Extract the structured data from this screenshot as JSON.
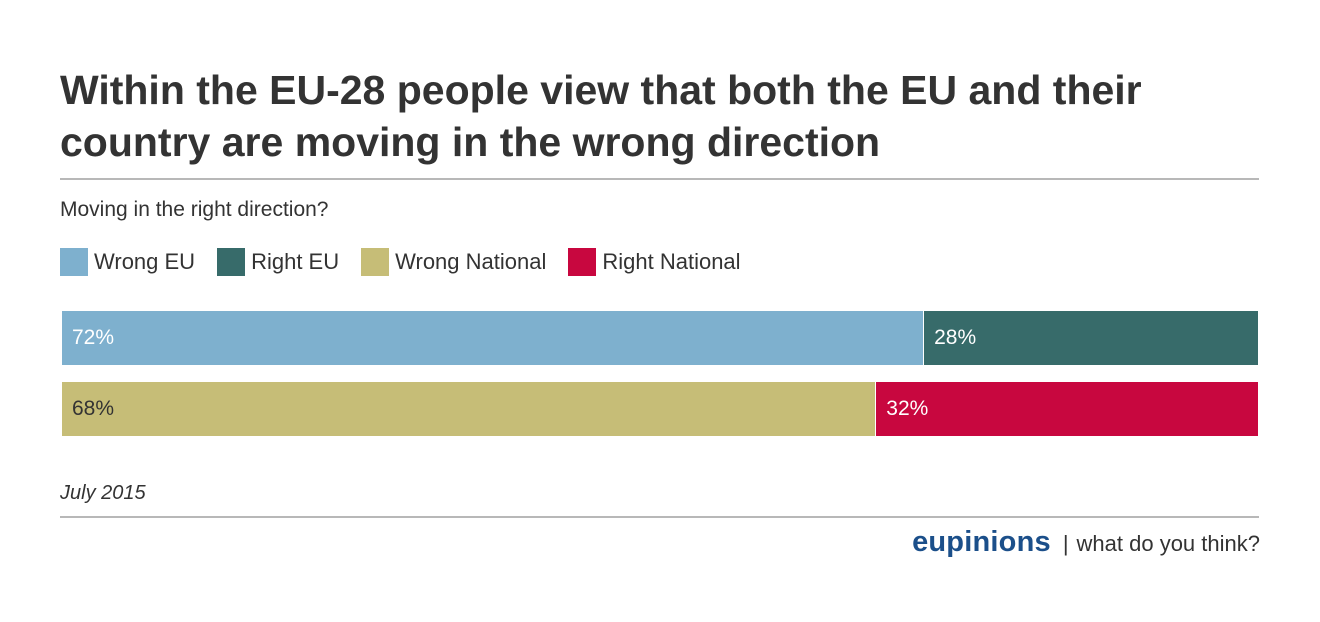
{
  "chart_data": {
    "type": "bar",
    "orientation": "horizontal",
    "stacked": true,
    "percent_stacked": true,
    "title": "Within the EU-28 people view that both the EU and their country are moving in the wrong direction",
    "subtitle": "Moving in the right direction?",
    "footnote": "July 2015",
    "legend_position": "top-left",
    "grid": false,
    "xlim": [
      0,
      100
    ],
    "legend": [
      {
        "name": "Wrong EU",
        "color": "#7eb0ce"
      },
      {
        "name": "Right EU",
        "color": "#376b6a"
      },
      {
        "name": "Wrong National",
        "color": "#c6bd77"
      },
      {
        "name": "Right National",
        "color": "#c8073f"
      }
    ],
    "rows": [
      {
        "segments": [
          {
            "series": "Wrong EU",
            "value": 72,
            "label": "72%",
            "color": "#7eb0ce",
            "text_color": "#ffffff"
          },
          {
            "series": "Right EU",
            "value": 28,
            "label": "28%",
            "color": "#376b6a",
            "text_color": "#ffffff"
          }
        ]
      },
      {
        "segments": [
          {
            "series": "Wrong National",
            "value": 68,
            "label": "68%",
            "color": "#c6bd77",
            "text_color": "#333333"
          },
          {
            "series": "Right National",
            "value": 32,
            "label": "32%",
            "color": "#c8073f",
            "text_color": "#ffffff"
          }
        ]
      }
    ]
  },
  "branding": {
    "name": "eupinions",
    "separator": "|",
    "tagline": "what do you think?"
  },
  "colors": {
    "brand": "#1b4f8a",
    "text": "#333333",
    "rule": "#b8b8b8"
  }
}
